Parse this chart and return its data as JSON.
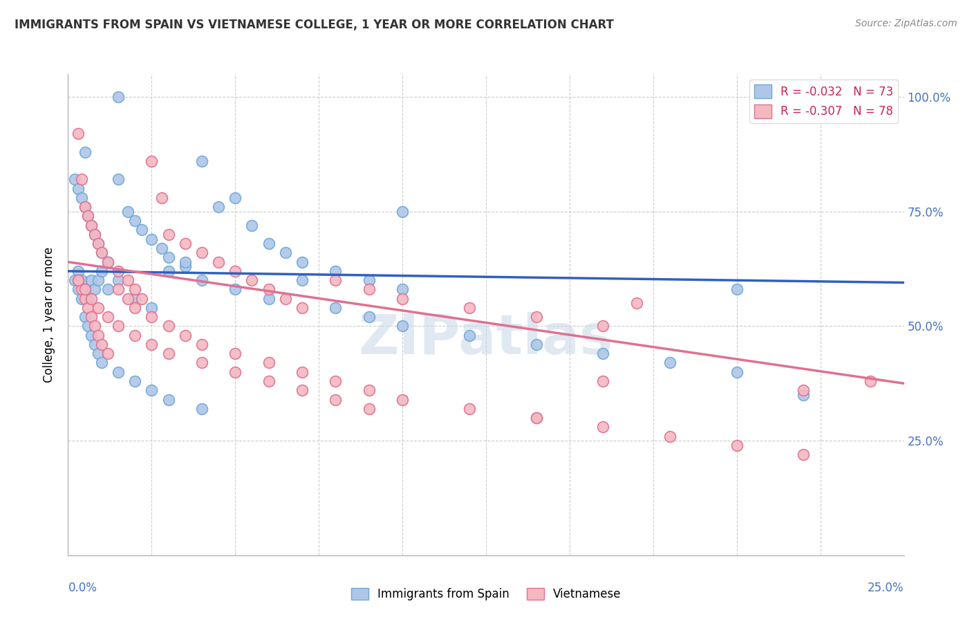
{
  "title": "IMMIGRANTS FROM SPAIN VS VIETNAMESE COLLEGE, 1 YEAR OR MORE CORRELATION CHART",
  "source": "Source: ZipAtlas.com",
  "ylabel": "College, 1 year or more",
  "legend1_label": "R = -0.032   N = 73",
  "legend2_label": "R = -0.307   N = 78",
  "legend1_color": "#aec6e8",
  "legend2_color": "#f4b8c1",
  "scatter1_color": "#aec6e8",
  "scatter2_color": "#f4b8c1",
  "scatter1_edge": "#6fa8d6",
  "scatter2_edge": "#e07090",
  "line1_color": "#3060c0",
  "line2_color": "#e07090",
  "watermark": "ZIPatlas",
  "blue_points_x": [
    0.015,
    0.005,
    0.002,
    0.003,
    0.004,
    0.005,
    0.006,
    0.007,
    0.008,
    0.009,
    0.01,
    0.012,
    0.015,
    0.018,
    0.02,
    0.022,
    0.025,
    0.028,
    0.03,
    0.035,
    0.04,
    0.045,
    0.05,
    0.055,
    0.06,
    0.065,
    0.07,
    0.08,
    0.09,
    0.1,
    0.003,
    0.004,
    0.005,
    0.006,
    0.007,
    0.008,
    0.009,
    0.01,
    0.012,
    0.015,
    0.02,
    0.025,
    0.03,
    0.035,
    0.04,
    0.05,
    0.06,
    0.07,
    0.08,
    0.09,
    0.1,
    0.12,
    0.14,
    0.16,
    0.18,
    0.2,
    0.22,
    0.002,
    0.003,
    0.004,
    0.005,
    0.006,
    0.007,
    0.008,
    0.009,
    0.01,
    0.015,
    0.02,
    0.025,
    0.03,
    0.04,
    0.2,
    0.1
  ],
  "blue_points_y": [
    1.0,
    0.88,
    0.82,
    0.8,
    0.78,
    0.76,
    0.74,
    0.72,
    0.7,
    0.68,
    0.66,
    0.64,
    0.82,
    0.75,
    0.73,
    0.71,
    0.69,
    0.67,
    0.65,
    0.63,
    0.86,
    0.76,
    0.78,
    0.72,
    0.68,
    0.66,
    0.64,
    0.62,
    0.6,
    0.58,
    0.62,
    0.6,
    0.58,
    0.56,
    0.6,
    0.58,
    0.6,
    0.62,
    0.58,
    0.6,
    0.56,
    0.54,
    0.62,
    0.64,
    0.6,
    0.58,
    0.56,
    0.6,
    0.54,
    0.52,
    0.5,
    0.48,
    0.46,
    0.44,
    0.42,
    0.4,
    0.35,
    0.6,
    0.58,
    0.56,
    0.52,
    0.5,
    0.48,
    0.46,
    0.44,
    0.42,
    0.4,
    0.38,
    0.36,
    0.34,
    0.32,
    0.58,
    0.75
  ],
  "pink_points_x": [
    0.003,
    0.004,
    0.005,
    0.006,
    0.007,
    0.008,
    0.009,
    0.01,
    0.012,
    0.015,
    0.018,
    0.02,
    0.022,
    0.025,
    0.028,
    0.03,
    0.035,
    0.04,
    0.045,
    0.05,
    0.055,
    0.06,
    0.065,
    0.07,
    0.08,
    0.09,
    0.1,
    0.12,
    0.14,
    0.16,
    0.003,
    0.004,
    0.005,
    0.006,
    0.007,
    0.008,
    0.009,
    0.01,
    0.012,
    0.015,
    0.018,
    0.02,
    0.025,
    0.03,
    0.035,
    0.04,
    0.05,
    0.06,
    0.07,
    0.08,
    0.09,
    0.1,
    0.12,
    0.14,
    0.16,
    0.18,
    0.2,
    0.22,
    0.24,
    0.003,
    0.005,
    0.007,
    0.009,
    0.012,
    0.015,
    0.02,
    0.025,
    0.03,
    0.04,
    0.05,
    0.06,
    0.07,
    0.08,
    0.09,
    0.14,
    0.22,
    0.16,
    0.17
  ],
  "pink_points_y": [
    0.92,
    0.82,
    0.76,
    0.74,
    0.72,
    0.7,
    0.68,
    0.66,
    0.64,
    0.62,
    0.6,
    0.58,
    0.56,
    0.86,
    0.78,
    0.7,
    0.68,
    0.66,
    0.64,
    0.62,
    0.6,
    0.58,
    0.56,
    0.54,
    0.6,
    0.58,
    0.56,
    0.54,
    0.52,
    0.5,
    0.6,
    0.58,
    0.56,
    0.54,
    0.52,
    0.5,
    0.48,
    0.46,
    0.44,
    0.58,
    0.56,
    0.54,
    0.52,
    0.5,
    0.48,
    0.46,
    0.44,
    0.42,
    0.4,
    0.38,
    0.36,
    0.34,
    0.32,
    0.3,
    0.28,
    0.26,
    0.24,
    0.22,
    0.38,
    0.6,
    0.58,
    0.56,
    0.54,
    0.52,
    0.5,
    0.48,
    0.46,
    0.44,
    0.42,
    0.4,
    0.38,
    0.36,
    0.34,
    0.32,
    0.3,
    0.36,
    0.38,
    0.55
  ],
  "xmin": 0.0,
  "xmax": 0.25,
  "ymin": 0.0,
  "ymax": 1.05,
  "line1_x": [
    0.0,
    0.25
  ],
  "line1_y": [
    0.62,
    0.595
  ],
  "line2_x": [
    0.0,
    0.25
  ],
  "line2_y": [
    0.64,
    0.375
  ],
  "bottom_legend1": "Immigrants from Spain",
  "bottom_legend2": "Vietnamese"
}
